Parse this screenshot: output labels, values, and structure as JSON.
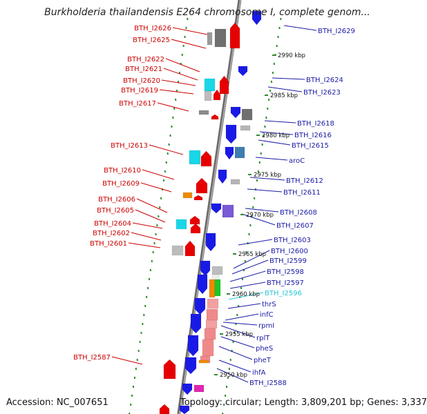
{
  "title": "Burkholderia thailandensis E264 chromosome I, complete genom...",
  "footer": {
    "accession": "Accession: NC_007651",
    "topology": "Topology: circular; Length: 3,809,201 bp; Genes: 3,337"
  },
  "colors": {
    "backbone": "#888888",
    "tick": "#2e8b2e",
    "left_label": "#cc0000",
    "right_label": "#1a1aa6",
    "highlight_label": "#27c5d8"
  },
  "kbp_markers": [
    "2990 kbp",
    "2985 kbp",
    "2980 kbp",
    "2975 kbp",
    "2970 kbp",
    "2965 kbp",
    "2960 kbp",
    "2955 kbp",
    "2950 kbp"
  ],
  "left_labels": [
    "BTH_I2626",
    "BTH_I2625",
    "BTH_I2622",
    "BTH_I2621",
    "BTH_I2620",
    "BTH_I2619",
    "BTH_I2617",
    "BTH_I2613",
    "BTH_I2610",
    "BTH_I2609",
    "BTH_I2606",
    "BTH_I2605",
    "BTH_I2604",
    "BTH_I2602",
    "BTH_I2601",
    "BTH_I2587"
  ],
  "right_labels": [
    "BTH_I2629",
    "BTH_I2624",
    "BTH_I2623",
    "BTH_I2618",
    "BTH_I2616",
    "BTH_I2615",
    "aroC",
    "BTH_I2612",
    "BTH_I2611",
    "BTH_I2608",
    "BTH_I2607",
    "BTH_I2603",
    "BTH_I2600",
    "BTH_I2599",
    "BTH_I2598",
    "BTH_I2597",
    "BTH_I2596",
    "thrS",
    "infC",
    "rpmI",
    "rplT",
    "pheS",
    "pheT",
    "ihfA",
    "BTH_I2588"
  ]
}
